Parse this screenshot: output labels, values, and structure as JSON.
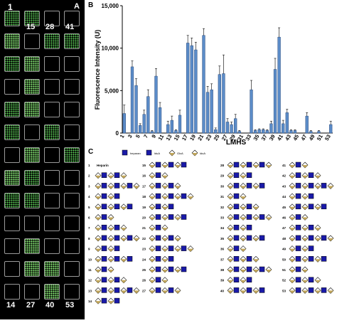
{
  "panel_a": {
    "letter": "A",
    "corner_labels": {
      "top_left": "1",
      "col2_top": "15",
      "col3_top": "28",
      "col4_top": "41",
      "col1_bottom": "14",
      "col2_bottom": "27",
      "col3_bottom": "40",
      "col4_bottom": "53"
    }
  },
  "panel_b": {
    "letter": "B"
  },
  "panel_c": {
    "letter": "C",
    "legend": [
      "heparan",
      "lduA",
      "GlcA",
      "ldoA"
    ],
    "first_entry_label": "Heparin",
    "row_numbers": [
      "1",
      "2",
      "3",
      "4",
      "5",
      "6",
      "7",
      "8",
      "9",
      "10",
      "11",
      "12",
      "13",
      "14",
      "15",
      "16",
      "17",
      "18",
      "19",
      "20",
      "21",
      "22",
      "23",
      "24",
      "25",
      "26",
      "27",
      "28",
      "29",
      "30",
      "31",
      "32",
      "33",
      "34",
      "35",
      "36",
      "37",
      "38",
      "39",
      "40",
      "41",
      "42",
      "43",
      "44",
      "45",
      "46",
      "47",
      "48",
      "49",
      "50",
      "51",
      "52",
      "53"
    ]
  },
  "chart_data": {
    "type": "bar",
    "title": "",
    "xlabel": "LMHS",
    "ylabel": "Fluorescence Intensity (U)",
    "ylim": [
      0,
      15000
    ],
    "yticks": [
      0,
      5000,
      10000,
      15000
    ],
    "ytick_labels": [
      "0",
      "5,000",
      "10,000",
      "15,000"
    ],
    "xtick_labels": [
      "1",
      "3",
      "5",
      "7",
      "9",
      "11",
      "13",
      "15",
      "17",
      "19",
      "21",
      "23",
      "25",
      "27",
      "29",
      "31",
      "33",
      "35",
      "37",
      "39",
      "41",
      "43",
      "45",
      "47",
      "49",
      "51",
      "53"
    ],
    "x": [
      1,
      2,
      3,
      4,
      5,
      6,
      7,
      8,
      9,
      10,
      11,
      12,
      13,
      14,
      15,
      16,
      17,
      18,
      19,
      20,
      21,
      22,
      23,
      24,
      25,
      26,
      27,
      28,
      29,
      30,
      31,
      32,
      33,
      34,
      35,
      36,
      37,
      38,
      39,
      40,
      41,
      42,
      43,
      44,
      45,
      46,
      47,
      48,
      49,
      50,
      51,
      52,
      53
    ],
    "values": [
      2300,
      0,
      7800,
      5600,
      900,
      2200,
      4300,
      200,
      6700,
      3000,
      0,
      1000,
      1500,
      300,
      2100,
      0,
      10600,
      10300,
      9800,
      0,
      11500,
      4800,
      5100,
      400,
      6900,
      7000,
      1300,
      1000,
      1700,
      200,
      0,
      0,
      5100,
      300,
      400,
      400,
      300,
      1100,
      7500,
      11300,
      1100,
      2400,
      300,
      300,
      0,
      0,
      2000,
      200,
      0,
      200,
      0,
      0,
      1000
    ],
    "errors": [
      1000,
      0,
      700,
      800,
      200,
      500,
      800,
      100,
      900,
      600,
      0,
      400,
      500,
      100,
      600,
      0,
      900,
      900,
      900,
      0,
      800,
      700,
      700,
      200,
      1000,
      2200,
      400,
      300,
      500,
      100,
      0,
      0,
      1100,
      100,
      100,
      100,
      100,
      300,
      1300,
      1100,
      400,
      400,
      100,
      100,
      0,
      0,
      400,
      100,
      0,
      100,
      0,
      0,
      400
    ],
    "bar_color": "#5b8cc8",
    "bar_edge": "#2d4e80"
  }
}
